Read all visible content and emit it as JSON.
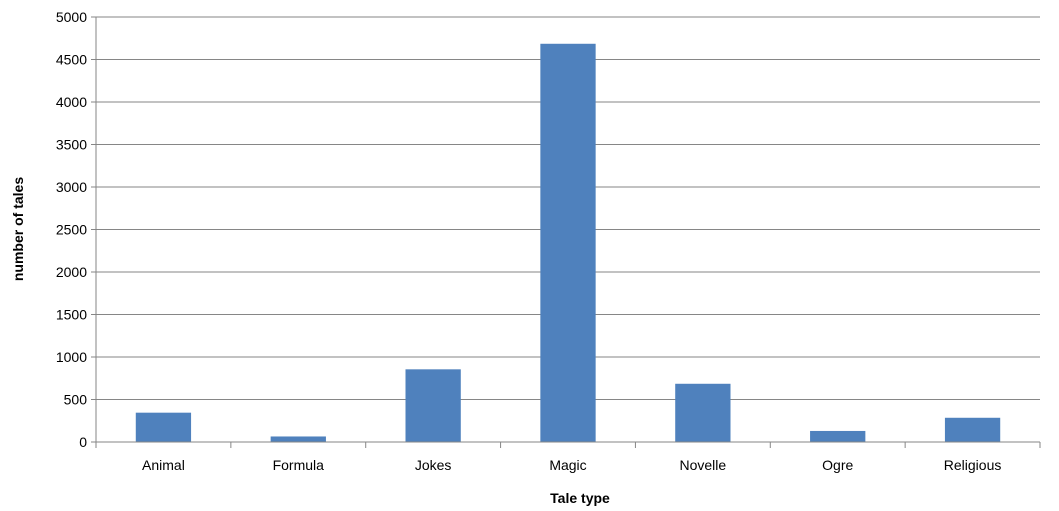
{
  "chart_data": {
    "type": "bar",
    "title": "",
    "xlabel": "Tale type",
    "ylabel": "number of tales",
    "categories": [
      "Animal",
      "Formula",
      "Jokes",
      "Magic",
      "Novelle",
      "Ogre",
      "Religious"
    ],
    "values": [
      345,
      65,
      855,
      4685,
      685,
      130,
      285
    ],
    "ylim": [
      0,
      5000
    ],
    "yticks": [
      "0",
      "500",
      "1000",
      "1500",
      "2000",
      "2500",
      "3000",
      "3500",
      "4000",
      "4500",
      "5000"
    ],
    "grid": true,
    "legend": "none",
    "bar_color": "#4F81BD"
  }
}
